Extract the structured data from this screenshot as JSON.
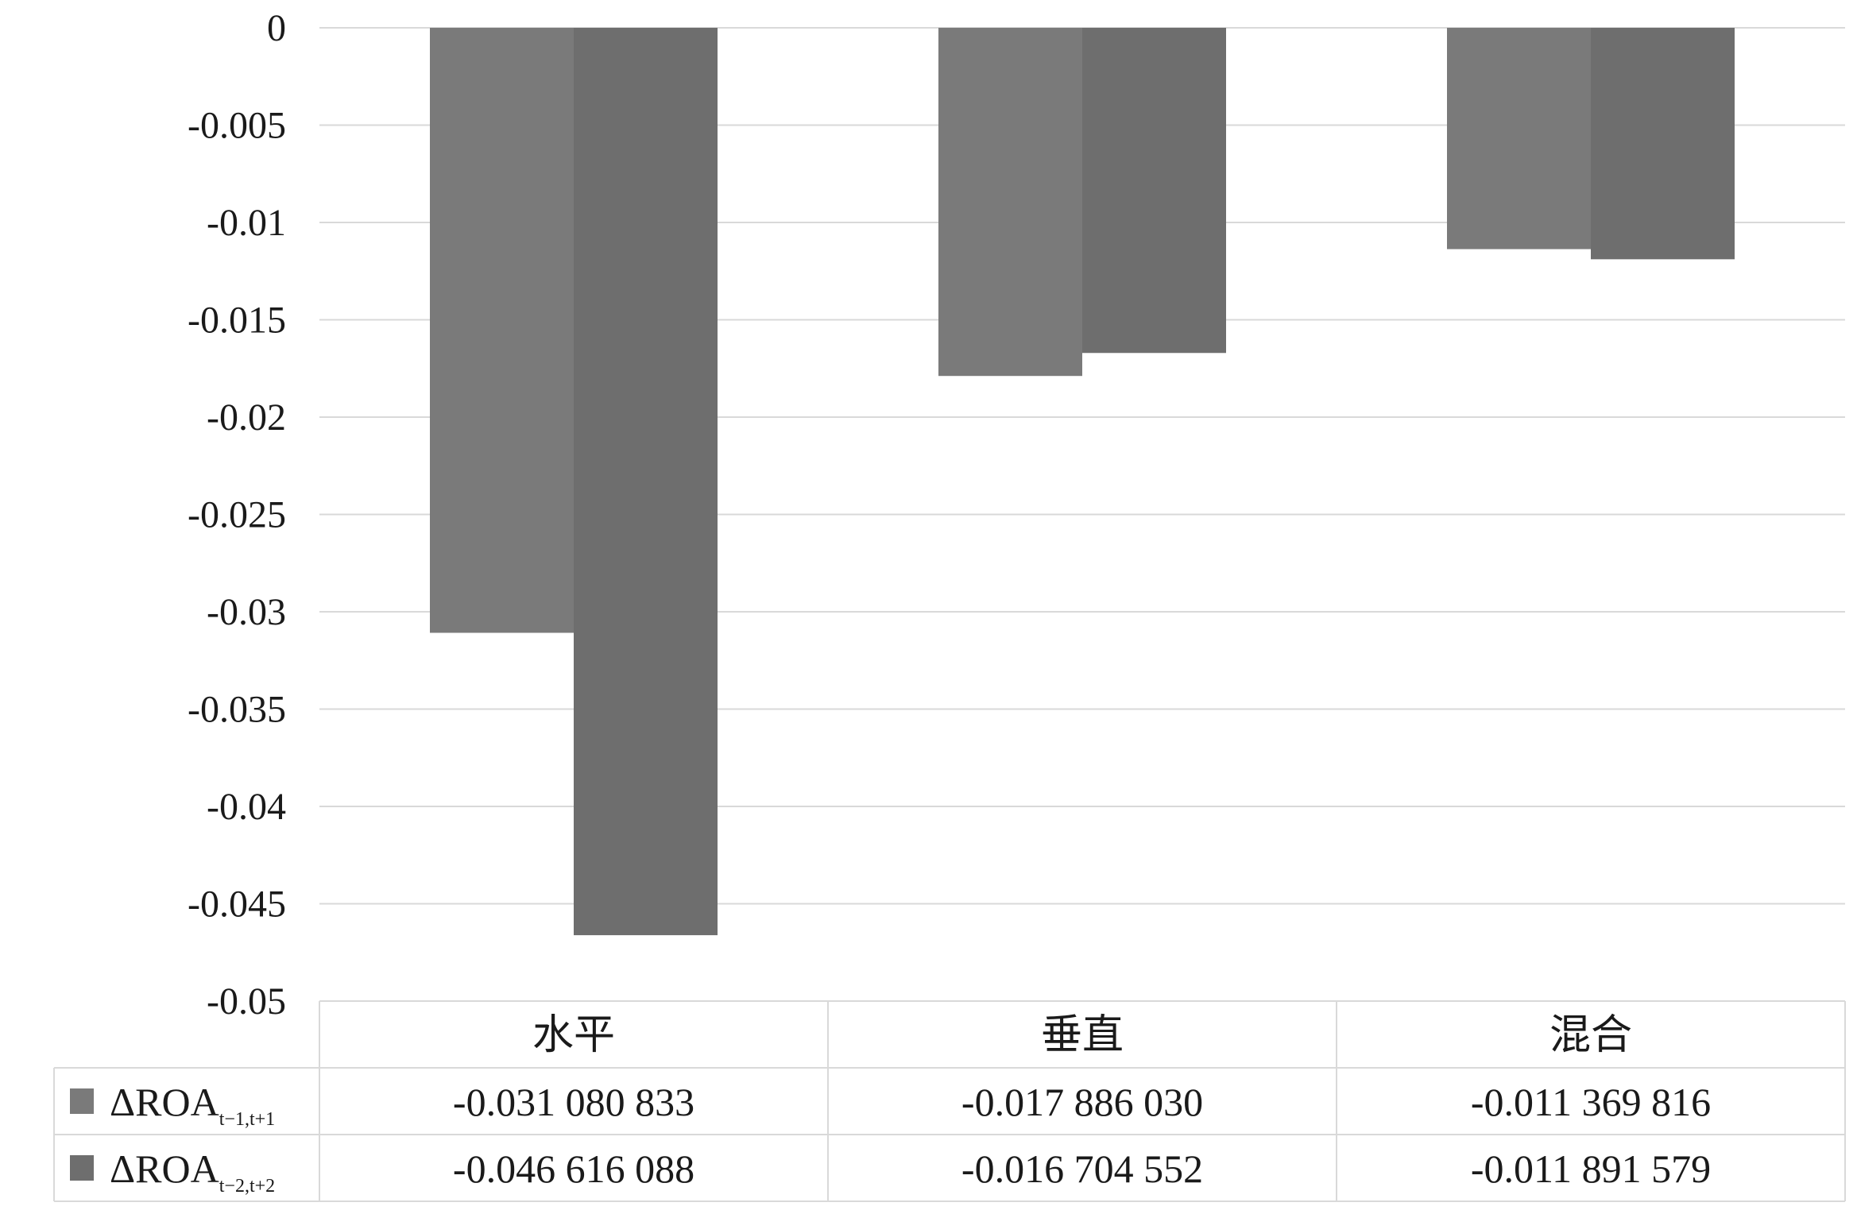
{
  "chart_data": {
    "type": "bar",
    "title": "",
    "xlabel": "",
    "ylabel": "",
    "categories": [
      "水平",
      "垂直",
      "混合"
    ],
    "ylim": [
      -0.05,
      0
    ],
    "yticks": [
      "0",
      "-0.005",
      "-0.01",
      "-0.015",
      "-0.02",
      "-0.025",
      "-0.03",
      "-0.035",
      "-0.04",
      "-0.045",
      "-0.05"
    ],
    "grid": true,
    "legend_position": "data-table-left",
    "series": [
      {
        "name_main": "ΔROA",
        "name_sub": "t−1,t+1",
        "color": "#7a7a7a",
        "values": [
          -0.031080833,
          -0.01788603,
          -0.011369816
        ],
        "labels": [
          "-0.031 080 833",
          "-0.017 886 030",
          "-0.011 369 816"
        ]
      },
      {
        "name_main": "ΔROA",
        "name_sub": "t−2,t+2",
        "color": "#6e6e6e",
        "values": [
          -0.046616088,
          -0.016704552,
          -0.011891579
        ],
        "labels": [
          "-0.046 616 088",
          "-0.016 704 552",
          "-0.011 891 579"
        ]
      }
    ]
  }
}
